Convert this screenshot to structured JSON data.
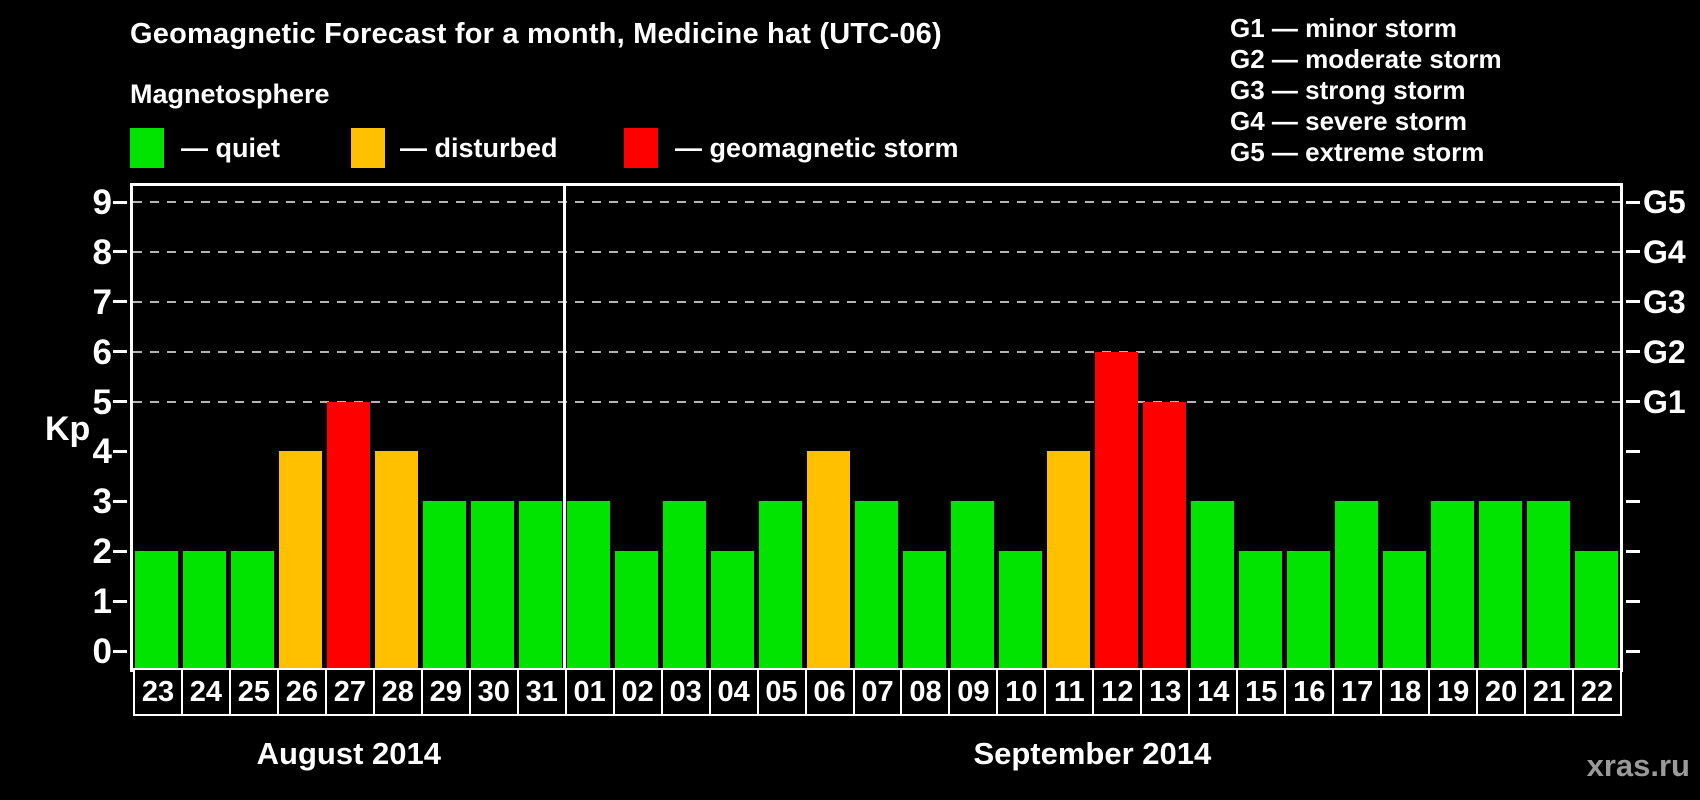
{
  "header": {
    "title": "Geomagnetic Forecast for a month, Medicine hat (UTC-06)",
    "subtitle": "Magnetosphere"
  },
  "legend": {
    "items": [
      {
        "key": "quiet",
        "label": "— quiet",
        "color": "#00e400"
      },
      {
        "key": "disturbed",
        "label": "— disturbed",
        "color": "#ffc000"
      },
      {
        "key": "storm",
        "label": "— geomagnetic storm",
        "color": "#ff0000"
      }
    ]
  },
  "g_legend": [
    "G1 — minor storm",
    "G2 — moderate storm",
    "G3 — strong storm",
    "G4 — severe storm",
    "G5 — extreme storm"
  ],
  "watermark": "xras.ru",
  "chart_data": {
    "type": "bar",
    "title": "Geomagnetic Forecast for a month, Medicine hat (UTC-06)",
    "ylabel": "Kp",
    "ylim": [
      0,
      9
    ],
    "yticks": [
      0,
      1,
      2,
      3,
      4,
      5,
      6,
      7,
      8,
      9
    ],
    "gridlines_at": [
      5,
      6,
      7,
      8,
      9
    ],
    "grid_color": "#b4b4b4",
    "right_axis": [
      {
        "kp": 5,
        "label": "G1"
      },
      {
        "kp": 6,
        "label": "G2"
      },
      {
        "kp": 7,
        "label": "G3"
      },
      {
        "kp": 8,
        "label": "G4"
      },
      {
        "kp": 9,
        "label": "G5"
      }
    ],
    "status_colors": {
      "quiet": "#00e400",
      "disturbed": "#ffc000",
      "storm": "#ff0000"
    },
    "months": [
      {
        "label": "August 2014",
        "days": [
          {
            "day": "23",
            "kp": 2,
            "status": "quiet"
          },
          {
            "day": "24",
            "kp": 2,
            "status": "quiet"
          },
          {
            "day": "25",
            "kp": 2,
            "status": "quiet"
          },
          {
            "day": "26",
            "kp": 4,
            "status": "disturbed"
          },
          {
            "day": "27",
            "kp": 5,
            "status": "storm"
          },
          {
            "day": "28",
            "kp": 4,
            "status": "disturbed"
          },
          {
            "day": "29",
            "kp": 3,
            "status": "quiet"
          },
          {
            "day": "30",
            "kp": 3,
            "status": "quiet"
          },
          {
            "day": "31",
            "kp": 3,
            "status": "quiet"
          }
        ]
      },
      {
        "label": "September 2014",
        "days": [
          {
            "day": "01",
            "kp": 3,
            "status": "quiet"
          },
          {
            "day": "02",
            "kp": 2,
            "status": "quiet"
          },
          {
            "day": "03",
            "kp": 3,
            "status": "quiet"
          },
          {
            "day": "04",
            "kp": 2,
            "status": "quiet"
          },
          {
            "day": "05",
            "kp": 3,
            "status": "quiet"
          },
          {
            "day": "06",
            "kp": 4,
            "status": "disturbed"
          },
          {
            "day": "07",
            "kp": 3,
            "status": "quiet"
          },
          {
            "day": "08",
            "kp": 2,
            "status": "quiet"
          },
          {
            "day": "09",
            "kp": 3,
            "status": "quiet"
          },
          {
            "day": "10",
            "kp": 2,
            "status": "quiet"
          },
          {
            "day": "11",
            "kp": 4,
            "status": "disturbed"
          },
          {
            "day": "12",
            "kp": 6,
            "status": "storm"
          },
          {
            "day": "13",
            "kp": 5,
            "status": "storm"
          },
          {
            "day": "14",
            "kp": 3,
            "status": "quiet"
          },
          {
            "day": "15",
            "kp": 2,
            "status": "quiet"
          },
          {
            "day": "16",
            "kp": 2,
            "status": "quiet"
          },
          {
            "day": "17",
            "kp": 3,
            "status": "quiet"
          },
          {
            "day": "18",
            "kp": 2,
            "status": "quiet"
          },
          {
            "day": "19",
            "kp": 3,
            "status": "quiet"
          },
          {
            "day": "20",
            "kp": 3,
            "status": "quiet"
          },
          {
            "day": "21",
            "kp": 3,
            "status": "quiet"
          },
          {
            "day": "22",
            "kp": 2,
            "status": "quiet"
          }
        ]
      }
    ]
  }
}
